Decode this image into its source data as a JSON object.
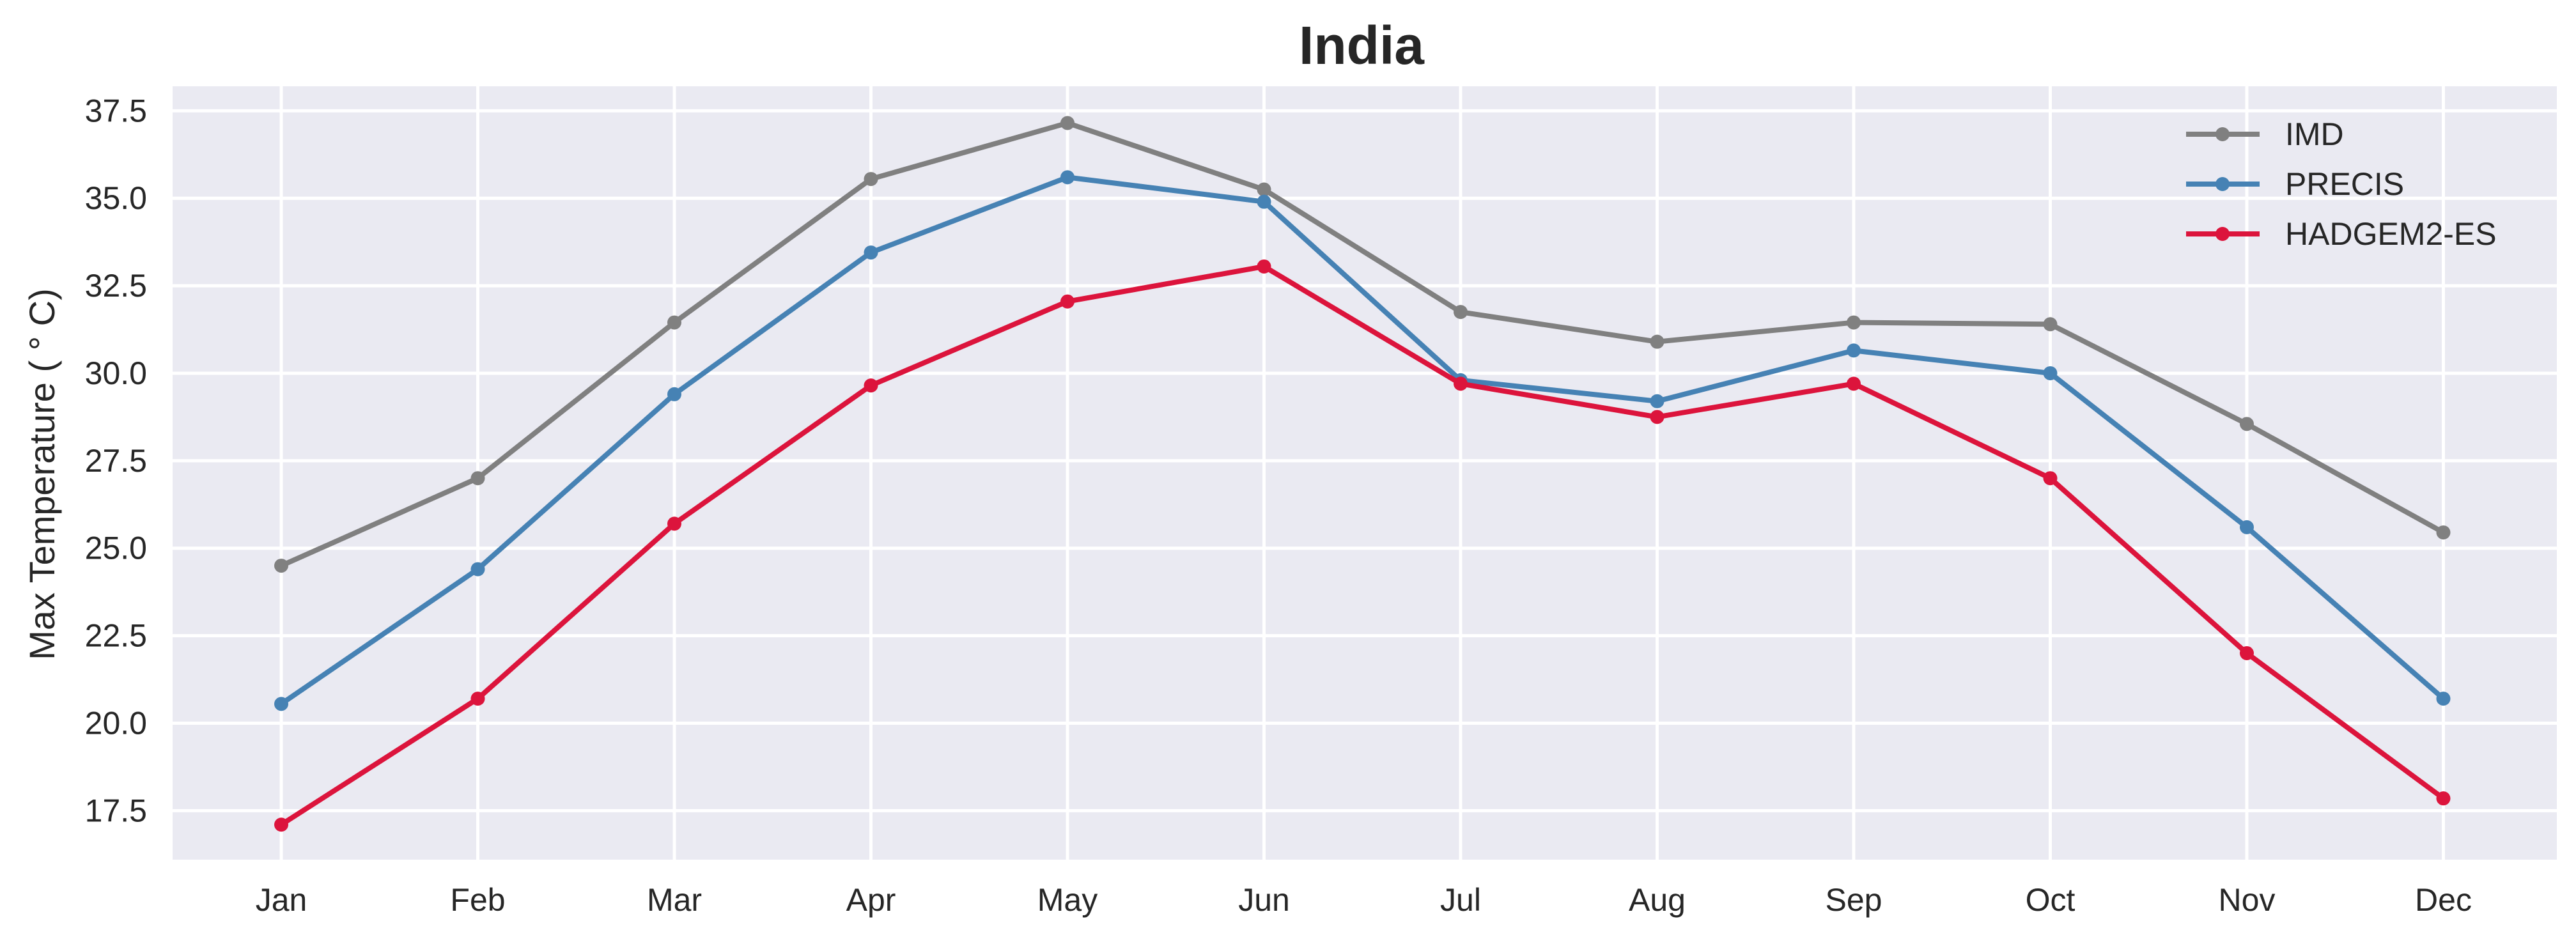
{
  "chart_data": {
    "type": "line",
    "title": "India",
    "xlabel": "",
    "ylabel": "Max Temperature ($^\\circ$C)",
    "ylabel_display": "Max Temperature ( ° C)",
    "categories": [
      "Jan",
      "Feb",
      "Mar",
      "Apr",
      "May",
      "Jun",
      "Jul",
      "Aug",
      "Sep",
      "Oct",
      "Nov",
      "Dec"
    ],
    "ylim": [
      16.1,
      38.2
    ],
    "yticks": [
      "17.5",
      "20.0",
      "22.5",
      "25.0",
      "27.5",
      "30.0",
      "32.5",
      "35.0",
      "37.5"
    ],
    "grid": true,
    "legend_position": "top-right",
    "series": [
      {
        "name": "IMD",
        "color": "#808080",
        "values": [
          24.5,
          27.0,
          31.45,
          35.55,
          37.15,
          35.25,
          31.75,
          30.9,
          31.45,
          31.4,
          28.55,
          25.45
        ]
      },
      {
        "name": "PRECIS",
        "color": "#4682b4",
        "values": [
          20.55,
          24.4,
          29.4,
          33.45,
          35.6,
          34.9,
          29.8,
          29.2,
          30.65,
          30.0,
          25.6,
          20.7
        ]
      },
      {
        "name": "HADGEM2-ES",
        "color": "#dc143c",
        "values": [
          17.1,
          20.7,
          25.7,
          29.65,
          32.05,
          33.05,
          29.7,
          28.75,
          29.7,
          27.0,
          22.0,
          17.85
        ]
      }
    ],
    "colors": {
      "plot_background": "#eaeaf2",
      "grid": "#ffffff"
    }
  }
}
